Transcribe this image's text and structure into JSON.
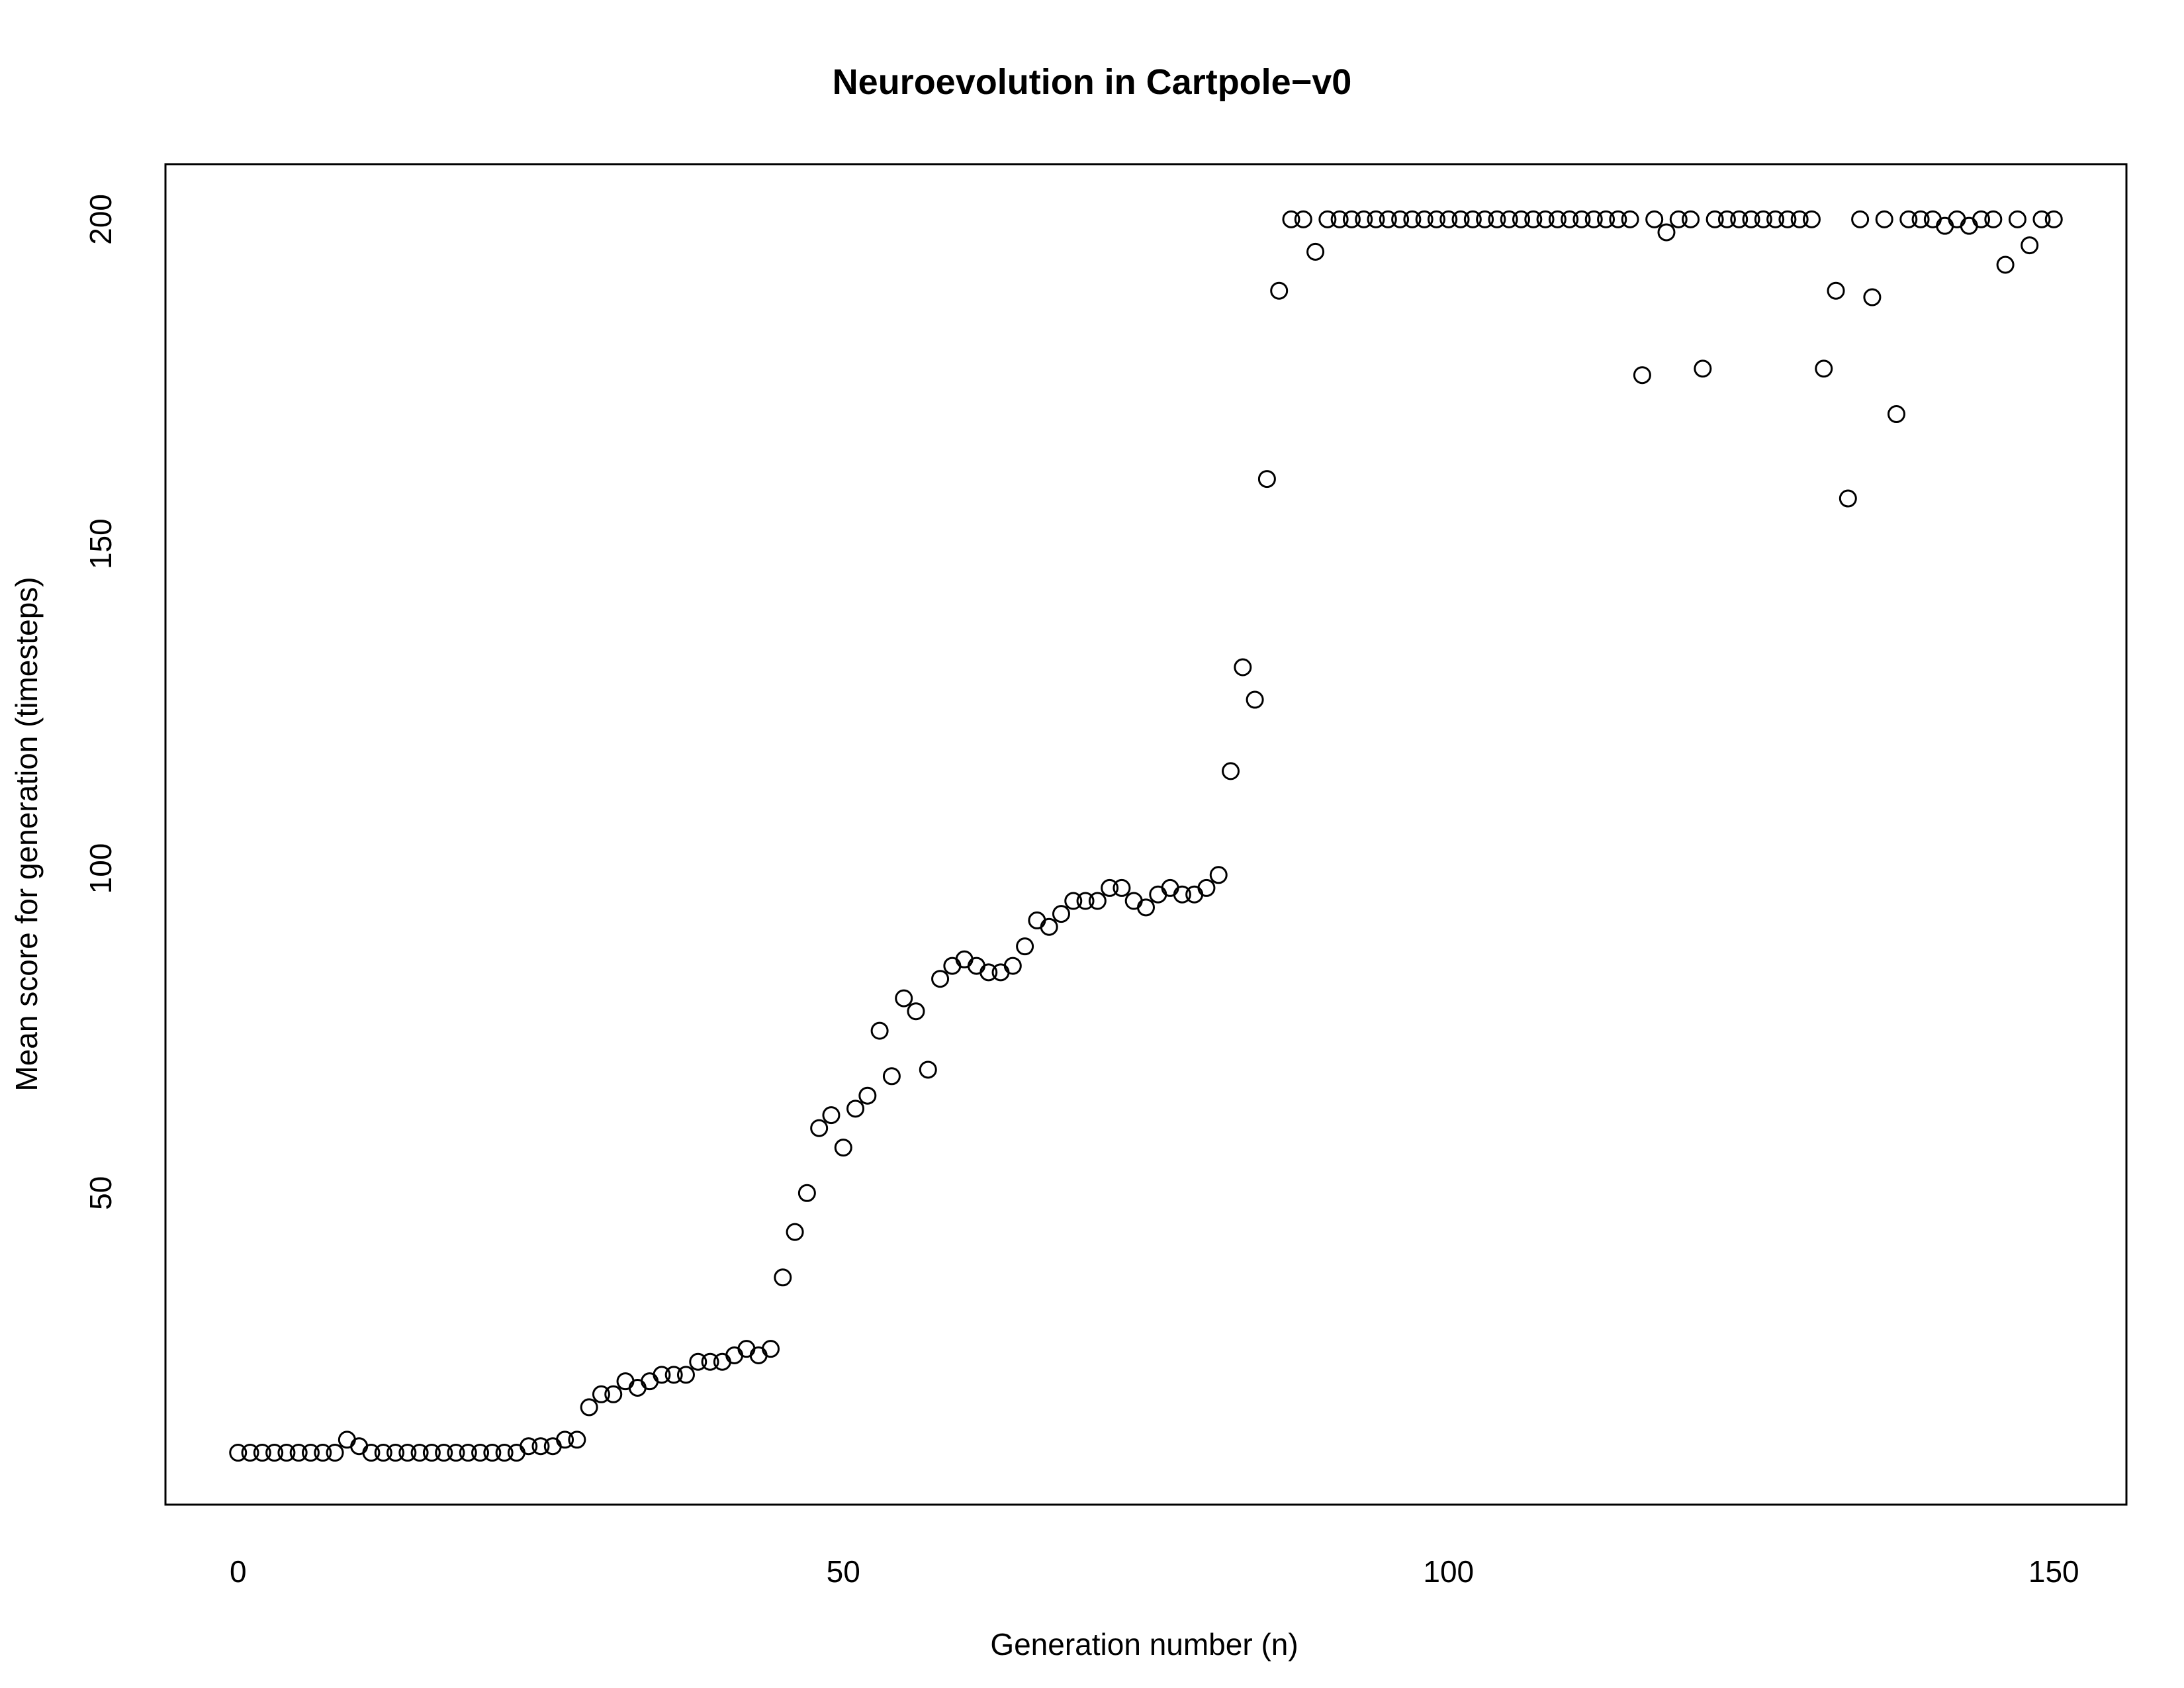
{
  "chart_data": {
    "type": "scatter",
    "title": "Neuroevolution in Cartpole−v0",
    "xlabel": "Generation number (n)",
    "ylabel": "Mean score for generation (timesteps)",
    "xlim": [
      -6,
      156
    ],
    "ylim": [
      2,
      208.5
    ],
    "xticks": [
      0,
      50,
      100,
      150
    ],
    "yticks": [
      50,
      100,
      150,
      200
    ],
    "x_tick_labels": [
      "0",
      "50",
      "100",
      "150"
    ],
    "y_tick_labels": [
      "50",
      "100",
      "150",
      "200"
    ],
    "grid": false,
    "marker": "open-circle",
    "x": [
      0,
      1,
      2,
      3,
      4,
      5,
      6,
      7,
      8,
      9,
      10,
      11,
      12,
      13,
      14,
      15,
      16,
      17,
      18,
      19,
      20,
      21,
      22,
      23,
      24,
      25,
      26,
      27,
      28,
      29,
      30,
      31,
      32,
      33,
      34,
      35,
      36,
      37,
      38,
      39,
      40,
      41,
      42,
      43,
      44,
      45,
      46,
      47,
      48,
      49,
      50,
      51,
      52,
      53,
      54,
      55,
      56,
      57,
      58,
      59,
      60,
      61,
      62,
      63,
      64,
      65,
      66,
      67,
      68,
      69,
      70,
      71,
      72,
      73,
      74,
      75,
      76,
      77,
      78,
      79,
      80,
      81,
      82,
      83,
      84,
      85,
      86,
      87,
      88,
      89,
      90,
      91,
      92,
      93,
      94,
      95,
      96,
      97,
      98,
      99,
      100,
      101,
      102,
      103,
      104,
      105,
      106,
      107,
      108,
      109,
      110,
      111,
      112,
      113,
      114,
      115,
      116,
      117,
      118,
      119,
      120,
      121,
      122,
      123,
      124,
      125,
      126,
      127,
      128,
      129,
      130,
      131,
      132,
      133,
      134,
      135,
      136,
      137,
      138,
      139,
      140,
      141,
      142,
      143,
      144,
      145,
      146,
      147,
      148,
      149,
      150
    ],
    "y": [
      10,
      10,
      10,
      10,
      10,
      10,
      10,
      10,
      10,
      12,
      11,
      10,
      10,
      10,
      10,
      10,
      10,
      10,
      10,
      10,
      10,
      10,
      10,
      10,
      11,
      11,
      11,
      12,
      12,
      17,
      19,
      19,
      21,
      20,
      21,
      22,
      22,
      22,
      24,
      24,
      24,
      25,
      26,
      25,
      26,
      37,
      44,
      50,
      60,
      62,
      57,
      63,
      65,
      75,
      68,
      80,
      78,
      69,
      83,
      85,
      86,
      85,
      84,
      84,
      85,
      88,
      92,
      91,
      93,
      95,
      95,
      95,
      97,
      97,
      95,
      94,
      96,
      97,
      96,
      96,
      97,
      99,
      115,
      131,
      126,
      160,
      189,
      200,
      200,
      195,
      200,
      200,
      200,
      200,
      200,
      200,
      200,
      200,
      200,
      200,
      200,
      200,
      200,
      200,
      200,
      200,
      200,
      200,
      200,
      200,
      200,
      200,
      200,
      200,
      200,
      200,
      176,
      200,
      198,
      200,
      200,
      177,
      200,
      200,
      200,
      200,
      200,
      200,
      200,
      200,
      200,
      177,
      189,
      157,
      200,
      188,
      200,
      170,
      200,
      200,
      200,
      199,
      200,
      199,
      200,
      200,
      193,
      200,
      196,
      200,
      200
    ]
  }
}
